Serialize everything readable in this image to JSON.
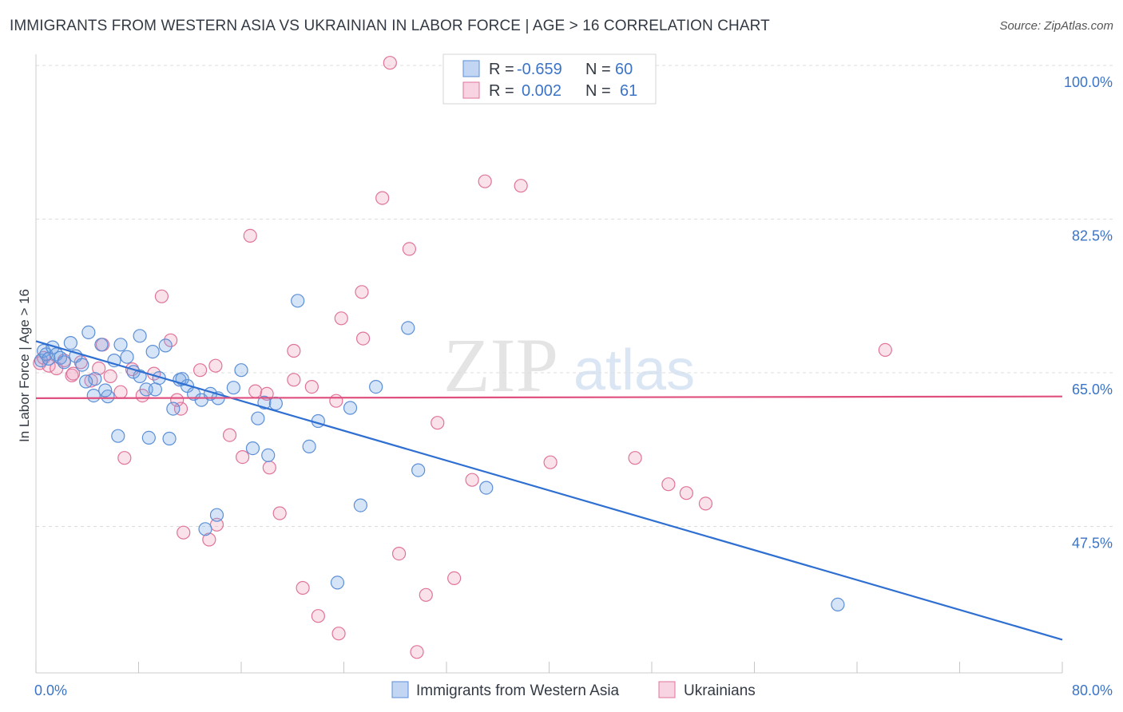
{
  "title": "IMMIGRANTS FROM WESTERN ASIA VS UKRAINIAN IN LABOR FORCE | AGE > 16 CORRELATION CHART",
  "source": "Source: ZipAtlas.com",
  "watermark": {
    "zip": "ZIP",
    "atlas": "atlas"
  },
  "colors": {
    "blue": "#5b8fd6",
    "blue_fill": "rgba(120,165,230,0.30)",
    "blue_line": "#2e6fd1",
    "pink": "#e0739a",
    "pink_fill": "rgba(240,160,190,0.30)",
    "pink_line": "#e0507f",
    "axis_text": "#3b74c7",
    "grid": "#dddddd"
  },
  "legend": {
    "rows": [
      {
        "r_label": "R =",
        "r_value": "-0.659",
        "n_label": "N =",
        "n_value": "60"
      },
      {
        "r_label": "R =",
        "r_value": "0.002",
        "n_label": "N =",
        "n_value": "61"
      }
    ]
  },
  "bottom_legend": [
    "Immigrants from Western Asia",
    "Ukrainians"
  ],
  "chart_data": {
    "type": "scatter",
    "xlabel": "",
    "ylabel": "In Labor Force | Age > 16",
    "xlim": [
      0,
      80
    ],
    "ylim": [
      32,
      102
    ],
    "x_tick_labels": [
      "0.0%",
      "80.0%"
    ],
    "y_ticks": [
      100,
      82.5,
      65,
      47.5
    ],
    "y_tick_labels": [
      "100.0%",
      "82.5%",
      "65.0%",
      "47.5%"
    ],
    "grid": true,
    "series": [
      {
        "name": "Immigrants from Western Asia",
        "trend": {
          "x": [
            0,
            80
          ],
          "y": [
            68.6,
            34.6
          ]
        },
        "points": [
          [
            0.4,
            66.4
          ],
          [
            0.6,
            67.5
          ],
          [
            0.8,
            67.1
          ],
          [
            1.0,
            66.6
          ],
          [
            1.3,
            67.9
          ],
          [
            1.6,
            67.1
          ],
          [
            1.9,
            66.7
          ],
          [
            2.2,
            66.2
          ],
          [
            2.7,
            68.4
          ],
          [
            3.1,
            66.9
          ],
          [
            3.6,
            65.9
          ],
          [
            4.1,
            69.6
          ],
          [
            4.6,
            64.3
          ],
          [
            5.1,
            68.2
          ],
          [
            5.6,
            62.3
          ],
          [
            6.1,
            66.4
          ],
          [
            6.6,
            68.2
          ],
          [
            7.1,
            66.8
          ],
          [
            7.6,
            65.1
          ],
          [
            8.1,
            69.2
          ],
          [
            8.6,
            63.1
          ],
          [
            9.1,
            67.4
          ],
          [
            9.6,
            64.4
          ],
          [
            10.1,
            68.1
          ],
          [
            10.7,
            60.9
          ],
          [
            11.2,
            64.2
          ],
          [
            11.8,
            63.5
          ],
          [
            12.3,
            62.6
          ],
          [
            12.9,
            61.9
          ],
          [
            13.6,
            62.6
          ],
          [
            14.2,
            62.1
          ],
          [
            15.4,
            63.3
          ],
          [
            16.0,
            65.3
          ],
          [
            17.3,
            59.8
          ],
          [
            17.8,
            61.6
          ],
          [
            18.7,
            61.5
          ],
          [
            20.4,
            73.2
          ],
          [
            21.3,
            56.6
          ],
          [
            22.0,
            59.5
          ],
          [
            23.5,
            41.1
          ],
          [
            24.5,
            61.0
          ],
          [
            25.3,
            49.9
          ],
          [
            26.5,
            63.4
          ],
          [
            29.0,
            70.1
          ],
          [
            29.8,
            53.9
          ],
          [
            35.1,
            51.9
          ],
          [
            4.5,
            62.4
          ],
          [
            6.4,
            57.8
          ],
          [
            8.8,
            57.6
          ],
          [
            10.4,
            57.5
          ],
          [
            13.2,
            47.2
          ],
          [
            14.1,
            48.8
          ],
          [
            16.9,
            56.4
          ],
          [
            18.1,
            55.6
          ],
          [
            8.1,
            64.6
          ],
          [
            5.4,
            63.0
          ],
          [
            11.4,
            64.3
          ],
          [
            3.9,
            64.0
          ],
          [
            9.3,
            63.1
          ],
          [
            62.5,
            38.6
          ]
        ]
      },
      {
        "name": "Ukrainians",
        "trend": {
          "x": [
            0,
            80
          ],
          "y": [
            62.1,
            62.3
          ]
        },
        "points": [
          [
            0.3,
            66.1
          ],
          [
            0.6,
            66.7
          ],
          [
            1.0,
            65.8
          ],
          [
            1.6,
            65.5
          ],
          [
            2.2,
            66.4
          ],
          [
            2.8,
            64.7
          ],
          [
            3.5,
            66.2
          ],
          [
            4.3,
            64.1
          ],
          [
            5.2,
            68.2
          ],
          [
            5.8,
            64.6
          ],
          [
            6.6,
            62.8
          ],
          [
            7.5,
            65.4
          ],
          [
            8.3,
            62.4
          ],
          [
            9.2,
            64.9
          ],
          [
            10.5,
            68.7
          ],
          [
            11.3,
            60.9
          ],
          [
            12.8,
            65.3
          ],
          [
            14.0,
            65.8
          ],
          [
            15.1,
            57.9
          ],
          [
            16.1,
            55.4
          ],
          [
            17.1,
            62.9
          ],
          [
            18.0,
            62.6
          ],
          [
            20.1,
            67.5
          ],
          [
            21.5,
            63.4
          ],
          [
            23.4,
            61.8
          ],
          [
            25.5,
            68.9
          ],
          [
            27.0,
            84.9
          ],
          [
            29.1,
            79.1
          ],
          [
            31.3,
            59.3
          ],
          [
            34.0,
            52.8
          ],
          [
            35.0,
            86.8
          ],
          [
            37.8,
            86.3
          ],
          [
            40.1,
            54.8
          ],
          [
            46.7,
            55.3
          ],
          [
            49.3,
            52.3
          ],
          [
            50.7,
            51.3
          ],
          [
            52.2,
            50.1
          ],
          [
            45.4,
            100.4
          ],
          [
            66.2,
            67.6
          ],
          [
            2.9,
            64.9
          ],
          [
            4.9,
            65.5
          ],
          [
            6.9,
            55.3
          ],
          [
            9.8,
            73.7
          ],
          [
            11.0,
            61.9
          ],
          [
            14.1,
            47.7
          ],
          [
            16.7,
            80.6
          ],
          [
            18.2,
            54.2
          ],
          [
            19.0,
            49.0
          ],
          [
            20.1,
            64.2
          ],
          [
            20.8,
            40.5
          ],
          [
            22.0,
            37.3
          ],
          [
            23.6,
            35.3
          ],
          [
            25.4,
            74.2
          ],
          [
            27.6,
            100.3
          ],
          [
            30.4,
            39.7
          ],
          [
            32.6,
            41.6
          ],
          [
            28.3,
            44.4
          ],
          [
            23.8,
            71.2
          ],
          [
            13.5,
            46.0
          ],
          [
            11.5,
            46.8
          ],
          [
            29.7,
            33.2
          ]
        ]
      }
    ]
  }
}
